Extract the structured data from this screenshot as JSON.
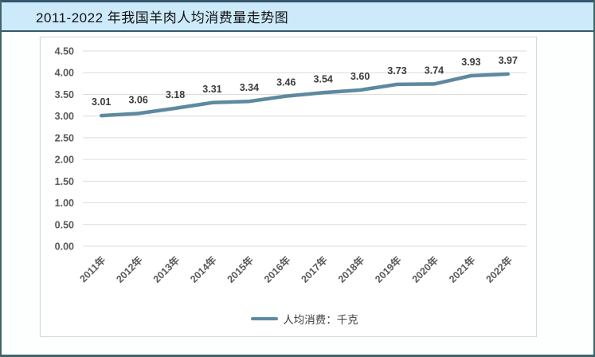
{
  "page": {
    "title": "2011-2022 年我国羊肉人均消费量走势图"
  },
  "colors": {
    "frame_border": "#41646a",
    "title_bar_bg": "#cdeafa",
    "title_bar_border": "#35576d",
    "series_line": "#5d89a1",
    "gridline": "#dcdcdc",
    "axis_text": "#595959",
    "data_label_text": "#3b3b3b",
    "panel_border": "#d9d9d9"
  },
  "chart_data": {
    "type": "line",
    "title": "2011-2022 年我国羊肉人均消费量走势图",
    "categories": [
      "2011年",
      "2012年",
      "2013年",
      "2014年",
      "2015年",
      "2016年",
      "2017年",
      "2018年",
      "2019年",
      "2020年",
      "2021年",
      "2022年"
    ],
    "series": [
      {
        "name": "人均消费：千克",
        "values": [
          3.01,
          3.06,
          3.18,
          3.31,
          3.34,
          3.46,
          3.54,
          3.6,
          3.73,
          3.74,
          3.93,
          3.97
        ],
        "data_labels": [
          "3.01",
          "3.06",
          "3.18",
          "3.31",
          "3.34",
          "3.46",
          "3.54",
          "3.60",
          "3.73",
          "3.74",
          "3.93",
          "3.97"
        ]
      }
    ],
    "xlabel": "",
    "ylabel": "",
    "ylim": [
      0,
      4.5
    ],
    "ytick_step": 0.5,
    "ytick_labels": [
      "0.00",
      "0.50",
      "1.00",
      "1.50",
      "2.00",
      "2.50",
      "3.00",
      "3.50",
      "4.00",
      "4.50"
    ],
    "grid": true,
    "legend_position": "bottom",
    "legend_label": "人均消费：千克"
  }
}
